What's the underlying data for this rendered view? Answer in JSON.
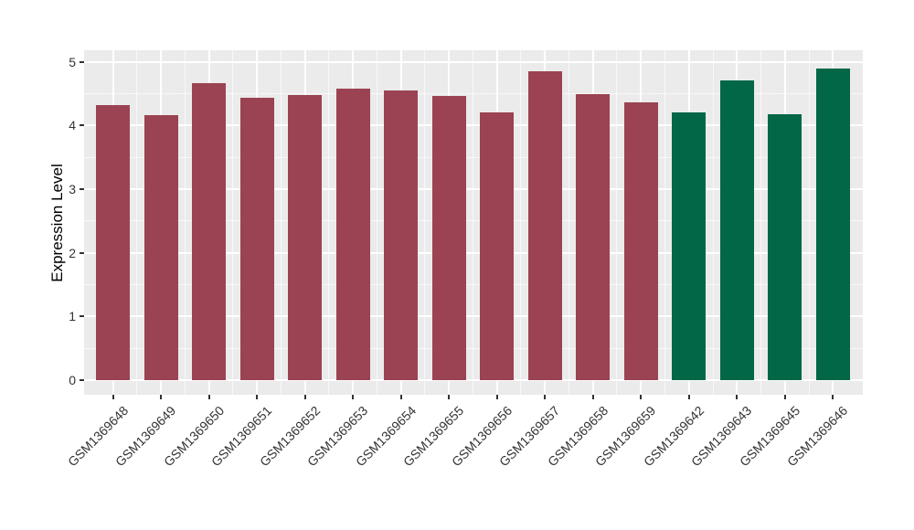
{
  "chart_data": {
    "type": "bar",
    "title": "",
    "xlabel": "",
    "ylabel": "Expression Level",
    "ylim": [
      0,
      5
    ],
    "yticks": [
      "0",
      "1",
      "2",
      "3",
      "4",
      "5"
    ],
    "grid": true,
    "legend_position": "none",
    "categories": [
      "GSM1369648",
      "GSM1369649",
      "GSM1369650",
      "GSM1369651",
      "GSM1369652",
      "GSM1369653",
      "GSM1369654",
      "GSM1369655",
      "GSM1369656",
      "GSM1369657",
      "GSM1369658",
      "GSM1369659",
      "GSM1369642",
      "GSM1369643",
      "GSM1369645",
      "GSM1369646"
    ],
    "values": [
      4.32,
      4.16,
      4.67,
      4.44,
      4.47,
      4.58,
      4.55,
      4.46,
      4.2,
      4.85,
      4.49,
      4.36,
      4.2,
      4.71,
      4.18,
      4.89
    ],
    "groups": [
      "red",
      "red",
      "red",
      "red",
      "red",
      "red",
      "red",
      "red",
      "red",
      "red",
      "red",
      "red",
      "green",
      "green",
      "green",
      "green"
    ],
    "colors": {
      "red": "#9B4352",
      "green": "#026747",
      "panel_background": "#EBEBEB",
      "grid_major": "#FFFFFF",
      "grid_minor": "#FFFFFF",
      "tick_mark": "#333333",
      "tick_text": "#333333",
      "axis_title_text": "#000000"
    }
  }
}
